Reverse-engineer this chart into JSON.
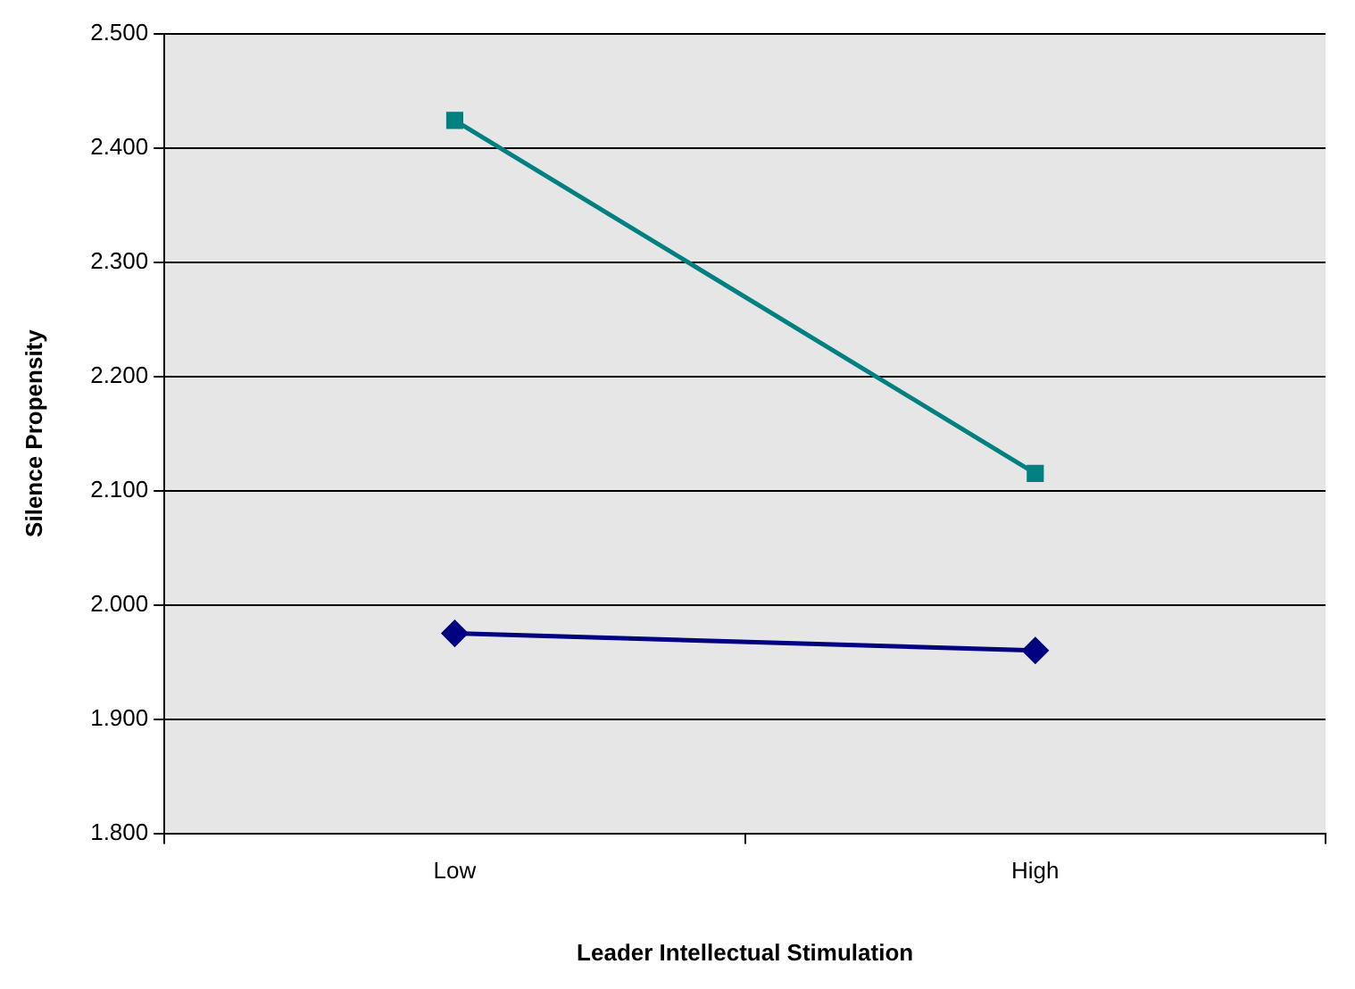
{
  "chart_data": {
    "type": "line",
    "xlabel": "Leader Intellectual Stimulation",
    "ylabel": "Silence Propensity",
    "categories": [
      "Low",
      "High"
    ],
    "series": [
      {
        "color": "#008080",
        "values": [
          2.424,
          2.115
        ],
        "marker": "square"
      },
      {
        "color": "#000080",
        "values": [
          1.975,
          1.96
        ],
        "marker": "diamond"
      }
    ],
    "ylim": [
      1.8,
      2.5
    ],
    "yticks": [
      {
        "value": 1.8,
        "label": "1.800"
      },
      {
        "value": 1.9,
        "label": "1.900"
      },
      {
        "value": 2.0,
        "label": "2.000"
      },
      {
        "value": 2.1,
        "label": "2.100"
      },
      {
        "value": 2.2,
        "label": "2.200"
      },
      {
        "value": 2.3,
        "label": "2.300"
      },
      {
        "value": 2.4,
        "label": "2.400"
      },
      {
        "value": 2.5,
        "label": "2.500"
      }
    ],
    "grid": "y",
    "legend": false,
    "line_style": "solid"
  }
}
